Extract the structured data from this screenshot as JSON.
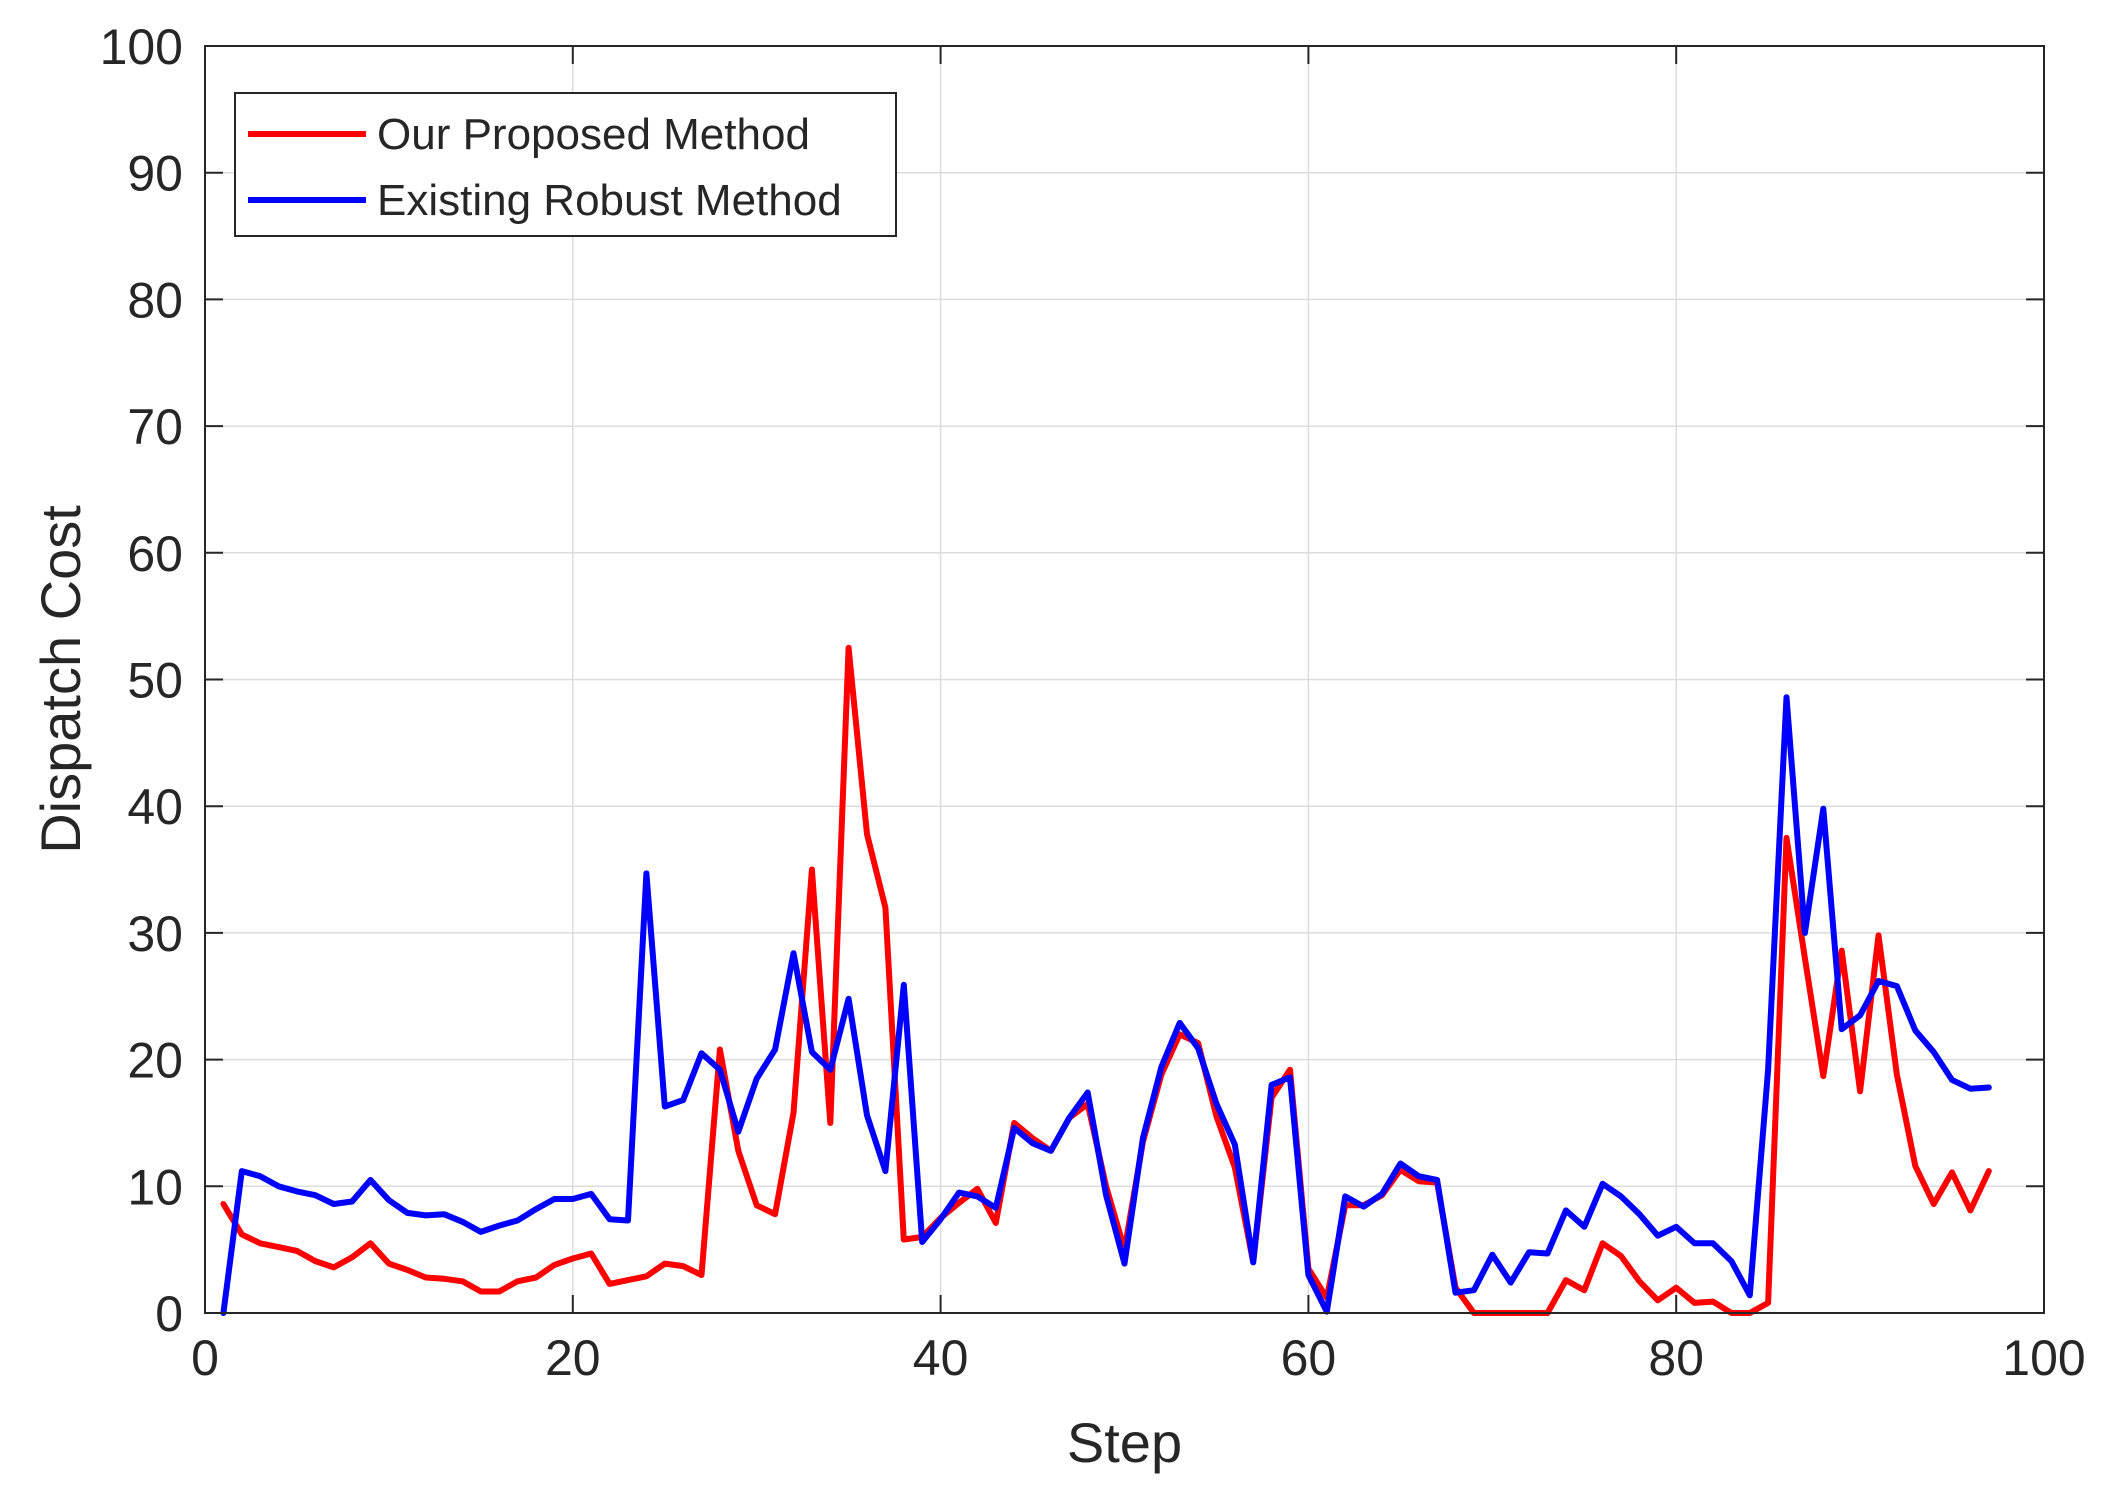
{
  "chart_data": {
    "type": "line",
    "title": "",
    "xlabel": "Step",
    "ylabel": "Dispatch Cost",
    "xlim": [
      0,
      100
    ],
    "ylim": [
      0,
      100
    ],
    "xticks": [
      0,
      20,
      40,
      60,
      80,
      100
    ],
    "yticks": [
      0,
      10,
      20,
      30,
      40,
      50,
      60,
      70,
      80,
      90,
      100
    ],
    "grid": true,
    "legend_position": "top-left",
    "x": [
      1,
      2,
      3,
      4,
      5,
      6,
      7,
      8,
      9,
      10,
      11,
      12,
      13,
      14,
      15,
      16,
      17,
      18,
      19,
      20,
      21,
      22,
      23,
      24,
      25,
      26,
      27,
      28,
      29,
      30,
      31,
      32,
      33,
      34,
      35,
      36,
      37,
      38,
      39,
      40,
      41,
      42,
      43,
      44,
      45,
      46,
      47,
      48,
      49,
      50,
      51,
      52,
      53,
      54,
      55,
      56,
      57,
      58,
      59,
      60,
      61,
      62,
      63,
      64,
      65,
      66,
      67,
      68,
      69,
      70,
      71,
      72,
      73,
      74,
      75,
      76,
      77,
      78,
      79,
      80,
      81,
      82,
      83,
      84,
      85,
      86,
      87,
      88,
      89,
      90,
      91,
      92,
      93,
      94,
      95,
      96,
      97
    ],
    "series": [
      {
        "name": "Our Proposed Method",
        "color": "#ff0000",
        "values": [
          8.6,
          6.2,
          5.5,
          5.2,
          4.9,
          4.1,
          3.6,
          4.4,
          5.5,
          3.9,
          3.4,
          2.8,
          2.7,
          2.5,
          1.7,
          1.7,
          2.5,
          2.8,
          3.8,
          4.3,
          4.7,
          2.3,
          2.6,
          2.9,
          3.9,
          3.7,
          3.0,
          20.8,
          12.8,
          8.5,
          7.8,
          15.8,
          35.0,
          15.0,
          52.5,
          37.8,
          32.0,
          5.8,
          6.0,
          7.5,
          8.7,
          9.8,
          7.1,
          15.0,
          13.8,
          12.8,
          15.4,
          16.5,
          10.0,
          5.0,
          13.5,
          18.8,
          22.0,
          21.3,
          15.5,
          11.5,
          4.0,
          17.0,
          19.2,
          3.5,
          1.2,
          8.5,
          8.5,
          9.3,
          11.3,
          10.4,
          10.3,
          2.0,
          0.0,
          0.0,
          0.0,
          0.0,
          0.0,
          2.6,
          1.8,
          5.5,
          4.5,
          2.5,
          1.0,
          2.0,
          0.8,
          0.9,
          0.0,
          0.0,
          0.8,
          37.5,
          28.0,
          18.7,
          28.6,
          17.5,
          29.8,
          18.8,
          11.6,
          8.6,
          11.1,
          8.1,
          11.2
        ]
      },
      {
        "name": "Existing Robust Method",
        "color": "#0000ff",
        "values": [
          0.0,
          11.2,
          10.8,
          10.0,
          9.6,
          9.3,
          8.6,
          8.8,
          10.5,
          8.9,
          7.9,
          7.7,
          7.8,
          7.2,
          6.4,
          6.9,
          7.3,
          8.2,
          9.0,
          9.0,
          9.4,
          7.4,
          7.3,
          34.7,
          16.3,
          16.8,
          20.5,
          19.2,
          14.3,
          18.5,
          20.8,
          28.4,
          20.6,
          19.2,
          24.8,
          15.6,
          11.2,
          25.9,
          5.6,
          7.4,
          9.5,
          9.2,
          8.3,
          14.6,
          13.4,
          12.8,
          15.4,
          17.4,
          9.3,
          3.9,
          13.8,
          19.4,
          22.9,
          20.9,
          16.5,
          13.3,
          4.0,
          18.0,
          18.6,
          3.0,
          0.1,
          9.2,
          8.4,
          9.4,
          11.8,
          10.8,
          10.5,
          1.6,
          1.8,
          4.6,
          2.4,
          4.8,
          4.7,
          8.1,
          6.8,
          10.2,
          9.2,
          7.8,
          6.1,
          6.8,
          5.5,
          5.5,
          4.1,
          1.4,
          19.2,
          48.6,
          30.0,
          39.8,
          22.4,
          23.5,
          26.2,
          25.8,
          22.3,
          20.6,
          18.4,
          17.7,
          17.8
        ]
      }
    ]
  }
}
